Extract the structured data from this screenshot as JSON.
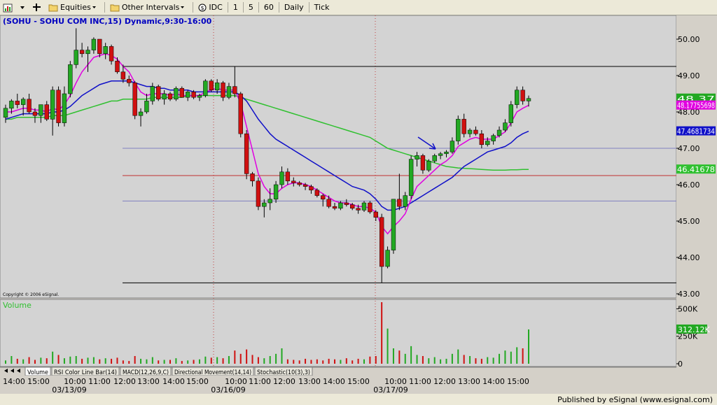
{
  "toolbar": {
    "items": [
      {
        "name": "equities-menu",
        "label": "Equities",
        "icon": "folder-icon"
      },
      {
        "name": "other-intervals-menu",
        "label": "Other Intervals",
        "icon": "folder-icon"
      },
      {
        "name": "interval-idc",
        "label": "IDC",
        "icon": "dollar-circle-icon"
      },
      {
        "name": "interval-1",
        "label": "1"
      },
      {
        "name": "interval-5",
        "label": "5"
      },
      {
        "name": "interval-60",
        "label": "60"
      },
      {
        "name": "interval-daily",
        "label": "Daily"
      },
      {
        "name": "interval-tick",
        "label": "Tick"
      }
    ]
  },
  "chart_header": "(SOHU - SOHU COM INC,15) Dynamic,9:30-16:00",
  "copyright": "Copyright © 2006 eSignal.",
  "volume_label": "Volume",
  "footer": {
    "published": "Published by eSignal (www.esignal.com)"
  },
  "tabs": [
    "Volume",
    "RSI Color Line Bar(14)",
    "MACD(12,26,9,C)",
    "Directional Movement(14,14)",
    "Stochastic(10(3),3)"
  ],
  "colors": {
    "background": "#d3d3d3",
    "up_candle": "#22a822",
    "down_candle": "#d01010",
    "fast_ma": "#e000e0",
    "mid_ma": "#1010c8",
    "slow_ma": "#30c030",
    "header_text": "#0000c0"
  },
  "chart_data": {
    "type": "candlestick",
    "symbol": "SOHU",
    "interval": "15",
    "price_axis": {
      "ticks": [
        "50.00",
        "49.00",
        "48.00",
        "47.00",
        "46.00",
        "45.00",
        "44.00",
        "43.00"
      ],
      "range": [
        43.0,
        50.5
      ]
    },
    "volume_axis": {
      "ticks": [
        "500K",
        "250K",
        "0"
      ],
      "range": [
        0,
        560000
      ]
    },
    "time_axis": {
      "labels": [
        "14:00",
        "15:00",
        "10:00",
        "11:00",
        "12:00",
        "13:00",
        "14:00",
        "15:00",
        "10:00",
        "11:00",
        "12:00",
        "13:00",
        "14:00",
        "15:00",
        "10:00",
        "11:00",
        "12:00",
        "13:00",
        "14:00",
        "15:00"
      ],
      "date_labels": [
        "03/13/09",
        "03/16/09",
        "03/17/09"
      ]
    },
    "candles": [
      {
        "o": 47.85,
        "h": 48.2,
        "l": 47.7,
        "c": 48.1
      },
      {
        "o": 48.1,
        "h": 48.35,
        "l": 47.95,
        "c": 48.3
      },
      {
        "o": 48.3,
        "h": 48.5,
        "l": 48.1,
        "c": 48.2
      },
      {
        "o": 48.2,
        "h": 48.4,
        "l": 47.9,
        "c": 48.35
      },
      {
        "o": 48.35,
        "h": 48.5,
        "l": 47.95,
        "c": 48.0
      },
      {
        "o": 48.0,
        "h": 48.1,
        "l": 47.7,
        "c": 47.9
      },
      {
        "o": 47.9,
        "h": 48.2,
        "l": 47.7,
        "c": 48.2
      },
      {
        "o": 48.2,
        "h": 48.3,
        "l": 47.75,
        "c": 47.8
      },
      {
        "o": 47.8,
        "h": 48.7,
        "l": 47.35,
        "c": 48.6
      },
      {
        "o": 48.6,
        "h": 48.7,
        "l": 47.6,
        "c": 47.7
      },
      {
        "o": 47.7,
        "h": 48.7,
        "l": 47.6,
        "c": 48.5
      },
      {
        "o": 48.5,
        "h": 49.4,
        "l": 48.4,
        "c": 49.3
      },
      {
        "o": 49.3,
        "h": 50.3,
        "l": 49.2,
        "c": 49.7
      },
      {
        "o": 49.7,
        "h": 49.9,
        "l": 49.5,
        "c": 49.6
      },
      {
        "o": 49.6,
        "h": 49.8,
        "l": 49.1,
        "c": 49.7
      },
      {
        "o": 49.7,
        "h": 50.05,
        "l": 49.6,
        "c": 50.0
      },
      {
        "o": 50.0,
        "h": 50.0,
        "l": 49.5,
        "c": 49.6
      },
      {
        "o": 49.6,
        "h": 49.9,
        "l": 49.45,
        "c": 49.8
      },
      {
        "o": 49.8,
        "h": 49.85,
        "l": 49.3,
        "c": 49.4
      },
      {
        "o": 49.4,
        "h": 49.5,
        "l": 49.05,
        "c": 49.1
      },
      {
        "o": 49.1,
        "h": 49.3,
        "l": 48.8,
        "c": 48.9
      },
      {
        "o": 48.9,
        "h": 49.0,
        "l": 48.7,
        "c": 48.8
      },
      {
        "o": 48.8,
        "h": 48.85,
        "l": 47.8,
        "c": 47.9
      },
      {
        "o": 47.9,
        "h": 48.1,
        "l": 47.6,
        "c": 48.0
      },
      {
        "o": 48.0,
        "h": 48.5,
        "l": 47.95,
        "c": 48.3
      },
      {
        "o": 48.3,
        "h": 48.8,
        "l": 48.2,
        "c": 48.7
      },
      {
        "o": 48.7,
        "h": 48.75,
        "l": 48.3,
        "c": 48.35
      },
      {
        "o": 48.35,
        "h": 48.6,
        "l": 48.2,
        "c": 48.5
      },
      {
        "o": 48.5,
        "h": 48.55,
        "l": 48.3,
        "c": 48.35
      },
      {
        "o": 48.35,
        "h": 48.7,
        "l": 48.3,
        "c": 48.65
      },
      {
        "o": 48.65,
        "h": 48.7,
        "l": 48.4,
        "c": 48.4
      },
      {
        "o": 48.4,
        "h": 48.6,
        "l": 48.3,
        "c": 48.55
      },
      {
        "o": 48.55,
        "h": 48.6,
        "l": 48.35,
        "c": 48.4
      },
      {
        "o": 48.4,
        "h": 48.5,
        "l": 48.3,
        "c": 48.45
      },
      {
        "o": 48.45,
        "h": 48.9,
        "l": 48.4,
        "c": 48.85
      },
      {
        "o": 48.85,
        "h": 48.9,
        "l": 48.55,
        "c": 48.6
      },
      {
        "o": 48.6,
        "h": 48.9,
        "l": 48.5,
        "c": 48.8
      },
      {
        "o": 48.8,
        "h": 48.85,
        "l": 48.3,
        "c": 48.4
      },
      {
        "o": 48.4,
        "h": 48.8,
        "l": 48.35,
        "c": 48.7
      },
      {
        "o": 48.7,
        "h": 49.25,
        "l": 48.4,
        "c": 48.5
      },
      {
        "o": 48.5,
        "h": 48.55,
        "l": 47.3,
        "c": 47.4
      },
      {
        "o": 47.4,
        "h": 47.5,
        "l": 46.15,
        "c": 46.3
      },
      {
        "o": 46.3,
        "h": 46.35,
        "l": 45.95,
        "c": 46.1
      },
      {
        "o": 46.1,
        "h": 46.2,
        "l": 45.3,
        "c": 45.4
      },
      {
        "o": 45.4,
        "h": 45.6,
        "l": 45.1,
        "c": 45.5
      },
      {
        "o": 45.5,
        "h": 45.9,
        "l": 45.3,
        "c": 45.6
      },
      {
        "o": 45.6,
        "h": 46.1,
        "l": 45.5,
        "c": 46.0
      },
      {
        "o": 46.0,
        "h": 46.5,
        "l": 45.9,
        "c": 46.35
      },
      {
        "o": 46.35,
        "h": 46.45,
        "l": 46.0,
        "c": 46.1
      },
      {
        "o": 46.1,
        "h": 46.2,
        "l": 45.95,
        "c": 46.05
      },
      {
        "o": 46.05,
        "h": 46.1,
        "l": 45.95,
        "c": 46.0
      },
      {
        "o": 46.0,
        "h": 46.05,
        "l": 45.85,
        "c": 45.95
      },
      {
        "o": 45.95,
        "h": 46.0,
        "l": 45.75,
        "c": 45.85
      },
      {
        "o": 45.85,
        "h": 45.9,
        "l": 45.65,
        "c": 45.7
      },
      {
        "o": 45.7,
        "h": 45.75,
        "l": 45.4,
        "c": 45.6
      },
      {
        "o": 45.6,
        "h": 45.7,
        "l": 45.35,
        "c": 45.4
      },
      {
        "o": 45.4,
        "h": 45.5,
        "l": 45.3,
        "c": 45.35
      },
      {
        "o": 45.35,
        "h": 45.55,
        "l": 45.3,
        "c": 45.5
      },
      {
        "o": 45.5,
        "h": 45.6,
        "l": 45.4,
        "c": 45.45
      },
      {
        "o": 45.45,
        "h": 45.5,
        "l": 45.3,
        "c": 45.35
      },
      {
        "o": 45.35,
        "h": 45.45,
        "l": 45.2,
        "c": 45.3
      },
      {
        "o": 45.3,
        "h": 45.55,
        "l": 45.25,
        "c": 45.5
      },
      {
        "o": 45.5,
        "h": 45.55,
        "l": 45.2,
        "c": 45.25
      },
      {
        "o": 45.25,
        "h": 45.3,
        "l": 45.0,
        "c": 45.1
      },
      {
        "o": 45.1,
        "h": 45.2,
        "l": 43.3,
        "c": 43.75
      },
      {
        "o": 43.75,
        "h": 44.3,
        "l": 43.7,
        "c": 44.2
      },
      {
        "o": 44.2,
        "h": 45.6,
        "l": 44.1,
        "c": 45.6
      },
      {
        "o": 45.6,
        "h": 46.3,
        "l": 45.3,
        "c": 45.4
      },
      {
        "o": 45.4,
        "h": 45.8,
        "l": 45.3,
        "c": 45.7
      },
      {
        "o": 45.7,
        "h": 46.8,
        "l": 45.6,
        "c": 46.7
      },
      {
        "o": 46.7,
        "h": 46.9,
        "l": 46.5,
        "c": 46.8
      },
      {
        "o": 46.8,
        "h": 46.85,
        "l": 46.3,
        "c": 46.4
      },
      {
        "o": 46.4,
        "h": 46.7,
        "l": 46.35,
        "c": 46.65
      },
      {
        "o": 46.65,
        "h": 46.85,
        "l": 46.6,
        "c": 46.8
      },
      {
        "o": 46.8,
        "h": 46.9,
        "l": 46.7,
        "c": 46.85
      },
      {
        "o": 46.85,
        "h": 46.95,
        "l": 46.75,
        "c": 46.9
      },
      {
        "o": 46.9,
        "h": 47.3,
        "l": 46.85,
        "c": 47.2
      },
      {
        "o": 47.2,
        "h": 47.9,
        "l": 47.1,
        "c": 47.8
      },
      {
        "o": 47.8,
        "h": 47.95,
        "l": 47.3,
        "c": 47.4
      },
      {
        "o": 47.4,
        "h": 47.55,
        "l": 47.3,
        "c": 47.5
      },
      {
        "o": 47.5,
        "h": 47.6,
        "l": 47.35,
        "c": 47.4
      },
      {
        "o": 47.4,
        "h": 47.5,
        "l": 47.0,
        "c": 47.1
      },
      {
        "o": 47.1,
        "h": 47.3,
        "l": 47.05,
        "c": 47.2
      },
      {
        "o": 47.2,
        "h": 47.4,
        "l": 47.1,
        "c": 47.35
      },
      {
        "o": 47.35,
        "h": 47.6,
        "l": 47.3,
        "c": 47.5
      },
      {
        "o": 47.5,
        "h": 47.8,
        "l": 47.45,
        "c": 47.7
      },
      {
        "o": 47.7,
        "h": 48.3,
        "l": 47.6,
        "c": 48.2
      },
      {
        "o": 48.2,
        "h": 48.7,
        "l": 48.1,
        "c": 48.6
      },
      {
        "o": 48.6,
        "h": 48.7,
        "l": 48.2,
        "c": 48.3
      },
      {
        "o": 48.3,
        "h": 48.45,
        "l": 48.15,
        "c": 48.37
      }
    ],
    "volume": [
      30000,
      70000,
      45000,
      40000,
      60000,
      35000,
      55000,
      50000,
      110000,
      80000,
      50000,
      65000,
      70000,
      45000,
      55000,
      60000,
      40000,
      50000,
      45000,
      55000,
      30000,
      25000,
      70000,
      45000,
      40000,
      60000,
      30000,
      35000,
      35000,
      50000,
      25000,
      30000,
      35000,
      40000,
      65000,
      55000,
      60000,
      50000,
      70000,
      120000,
      90000,
      130000,
      80000,
      60000,
      50000,
      70000,
      90000,
      140000,
      40000,
      35000,
      30000,
      45000,
      35000,
      40000,
      30000,
      45000,
      40000,
      35000,
      50000,
      30000,
      45000,
      40000,
      65000,
      70000,
      560000,
      320000,
      140000,
      120000,
      90000,
      160000,
      80000,
      70000,
      50000,
      60000,
      40000,
      45000,
      90000,
      130000,
      80000,
      70000,
      50000,
      45000,
      60000,
      55000,
      90000,
      120000,
      110000,
      150000,
      140000,
      312120
    ],
    "volume_label_value": "312.12K",
    "moving_averages": {
      "fast": [
        48.0,
        48.0,
        48.05,
        48.1,
        48.1,
        48.05,
        48.05,
        48.0,
        48.1,
        48.05,
        48.2,
        48.45,
        48.8,
        49.1,
        49.3,
        49.5,
        49.55,
        49.6,
        49.55,
        49.45,
        49.25,
        49.1,
        48.8,
        48.55,
        48.45,
        48.5,
        48.5,
        48.5,
        48.45,
        48.5,
        48.45,
        48.45,
        48.45,
        48.45,
        48.55,
        48.6,
        48.65,
        48.6,
        48.6,
        48.6,
        48.25,
        47.6,
        46.95,
        46.3,
        45.95,
        45.75,
        45.75,
        45.9,
        46.0,
        46.05,
        46.05,
        46.0,
        45.95,
        45.85,
        45.75,
        45.65,
        45.55,
        45.5,
        45.5,
        45.45,
        45.4,
        45.4,
        45.35,
        45.25,
        44.85,
        44.65,
        44.85,
        45.0,
        45.2,
        45.6,
        45.95,
        46.1,
        46.25,
        46.4,
        46.55,
        46.65,
        46.8,
        47.05,
        47.15,
        47.25,
        47.3,
        47.25,
        47.25,
        47.25,
        47.35,
        47.45,
        47.7,
        48.0,
        48.1,
        48.18
      ],
      "mid": [
        47.8,
        47.85,
        47.9,
        47.95,
        47.95,
        47.95,
        47.95,
        47.95,
        48.0,
        48.0,
        48.05,
        48.15,
        48.3,
        48.45,
        48.55,
        48.65,
        48.75,
        48.8,
        48.85,
        48.85,
        48.85,
        48.85,
        48.8,
        48.75,
        48.7,
        48.7,
        48.65,
        48.65,
        48.6,
        48.6,
        48.6,
        48.6,
        48.55,
        48.55,
        48.55,
        48.55,
        48.55,
        48.55,
        48.55,
        48.55,
        48.45,
        48.3,
        48.05,
        47.8,
        47.6,
        47.4,
        47.25,
        47.15,
        47.05,
        46.95,
        46.85,
        46.75,
        46.65,
        46.55,
        46.45,
        46.35,
        46.25,
        46.15,
        46.05,
        45.95,
        45.9,
        45.85,
        45.75,
        45.6,
        45.4,
        45.3,
        45.3,
        45.35,
        45.4,
        45.5,
        45.6,
        45.7,
        45.8,
        45.9,
        46.0,
        46.1,
        46.2,
        46.35,
        46.5,
        46.6,
        46.7,
        46.8,
        46.9,
        46.95,
        47.0,
        47.05,
        47.15,
        47.3,
        47.4,
        47.47
      ],
      "slow": [
        47.8,
        47.8,
        47.85,
        47.85,
        47.85,
        47.85,
        47.85,
        47.85,
        47.9,
        47.9,
        47.9,
        47.95,
        48.0,
        48.05,
        48.1,
        48.15,
        48.2,
        48.25,
        48.3,
        48.3,
        48.35,
        48.35,
        48.35,
        48.35,
        48.35,
        48.4,
        48.4,
        48.4,
        48.4,
        48.4,
        48.4,
        48.45,
        48.45,
        48.45,
        48.45,
        48.45,
        48.45,
        48.45,
        48.45,
        48.45,
        48.4,
        48.35,
        48.3,
        48.25,
        48.2,
        48.15,
        48.1,
        48.05,
        48.0,
        47.95,
        47.9,
        47.85,
        47.8,
        47.75,
        47.7,
        47.65,
        47.6,
        47.55,
        47.5,
        47.45,
        47.4,
        47.35,
        47.3,
        47.2,
        47.1,
        47.0,
        46.95,
        46.9,
        46.85,
        46.8,
        46.75,
        46.7,
        46.65,
        46.6,
        46.55,
        46.5,
        46.48,
        46.46,
        46.45,
        46.44,
        46.43,
        46.42,
        46.41,
        46.4,
        46.4,
        46.4,
        46.41,
        46.41,
        46.42,
        46.42
      ]
    },
    "horizontal_lines": [
      {
        "price": 49.25,
        "color": "#000000"
      },
      {
        "price": 47.0,
        "color": "#8080c0"
      },
      {
        "price": 46.25,
        "color": "#c03030"
      },
      {
        "price": 45.55,
        "color": "#8080c0"
      },
      {
        "price": 43.3,
        "color": "#000000"
      }
    ],
    "price_tags": [
      {
        "label": "48.37",
        "color": "#22a822",
        "text_color": "#ffffff",
        "price": 48.37
      },
      {
        "label": "48.17755698",
        "color": "#e000e0",
        "text_color": "#ffffff",
        "price": 48.18
      },
      {
        "label": "47.4681734",
        "color": "#1010c8",
        "text_color": "#ffffff",
        "price": 47.47
      },
      {
        "label": "46.41678",
        "color": "#30c030",
        "text_color": "#ffffff",
        "price": 46.42
      }
    ]
  }
}
